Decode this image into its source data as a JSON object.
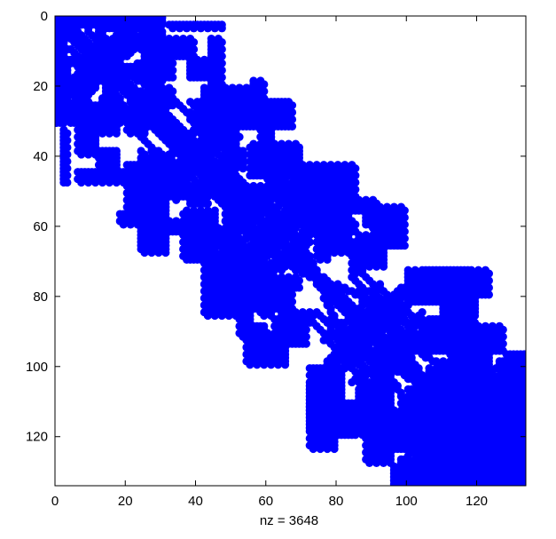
{
  "chart_data": {
    "type": "scatter",
    "title": "",
    "xlabel": "nz = 3648",
    "ylabel": "",
    "xlim": [
      0,
      134
    ],
    "ylim": [
      0,
      134
    ],
    "y_direction": "top-to-bottom",
    "grid": false,
    "marker_color": "#0000ff",
    "x_ticks": [
      "0",
      "20",
      "40",
      "60",
      "80",
      "100",
      "120"
    ],
    "y_ticks": [
      "0",
      "20",
      "40",
      "60",
      "80",
      "100",
      "120"
    ],
    "nonzero_count": 3648,
    "x_tick_values": [
      0,
      20,
      40,
      60,
      80,
      100,
      120
    ],
    "y_tick_values": [
      0,
      20,
      40,
      60,
      80,
      100,
      120
    ],
    "structure": {
      "description_blocks": [
        {
          "rows": [
            0,
            30
          ],
          "cols": [
            0,
            30
          ],
          "pattern": "dense-diamond"
        },
        {
          "rows": [
            24,
            52
          ],
          "cols": [
            24,
            52
          ],
          "pattern": "diamond"
        },
        {
          "rows": [
            46,
            74
          ],
          "cols": [
            46,
            74
          ],
          "pattern": "diamond"
        },
        {
          "rows": [
            72,
            102
          ],
          "cols": [
            72,
            102
          ],
          "pattern": "diamond"
        },
        {
          "rows": [
            96,
            134
          ],
          "cols": [
            96,
            134
          ],
          "pattern": "diamond"
        }
      ]
    },
    "dense_rects": [
      [
        0,
        30,
        0,
        3
      ],
      [
        0,
        3,
        0,
        30
      ],
      [
        0,
        30,
        27,
        30
      ],
      [
        27,
        30,
        0,
        30
      ],
      [
        0,
        18,
        25,
        31
      ],
      [
        0,
        4,
        25,
        31
      ],
      [
        4,
        12,
        28,
        31
      ],
      [
        12,
        18,
        25,
        31
      ],
      [
        12,
        20,
        0,
        4
      ],
      [
        18,
        25,
        0,
        4
      ],
      [
        25,
        30,
        0,
        20
      ],
      [
        25,
        34,
        6,
        18
      ],
      [
        34,
        40,
        6,
        12
      ],
      [
        25,
        30,
        25,
        32
      ],
      [
        28,
        34,
        20,
        26
      ],
      [
        0,
        4,
        27,
        31
      ],
      [
        4,
        14,
        26,
        31
      ],
      [
        14,
        17,
        24,
        30
      ],
      [
        17,
        24,
        28,
        31
      ],
      [
        0,
        3,
        28,
        29
      ],
      [
        2,
        4,
        32,
        48
      ],
      [
        44,
        48,
        6,
        24
      ],
      [
        38,
        48,
        12,
        18
      ],
      [
        40,
        48,
        24,
        30
      ],
      [
        40,
        44,
        30,
        32
      ],
      [
        24,
        28,
        52,
        66
      ],
      [
        24,
        32,
        40,
        46
      ],
      [
        30,
        38,
        48,
        52
      ],
      [
        38,
        44,
        48,
        54
      ],
      [
        24,
        28,
        40,
        50
      ],
      [
        28,
        32,
        42,
        46
      ],
      [
        42,
        56,
        20,
        26
      ],
      [
        48,
        60,
        24,
        32
      ],
      [
        56,
        68,
        24,
        32
      ],
      [
        56,
        60,
        18,
        30
      ],
      [
        60,
        68,
        24,
        30
      ],
      [
        24,
        30,
        50,
        66
      ],
      [
        30,
        42,
        58,
        62
      ],
      [
        38,
        44,
        62,
        70
      ],
      [
        42,
        50,
        60,
        66
      ],
      [
        44,
        52,
        68,
        72
      ],
      [
        48,
        56,
        66,
        74
      ],
      [
        55,
        70,
        36,
        46
      ],
      [
        60,
        66,
        36,
        40
      ],
      [
        62,
        70,
        40,
        46
      ],
      [
        68,
        72,
        42,
        46
      ],
      [
        52,
        60,
        48,
        52
      ],
      [
        56,
        58,
        72,
        76
      ],
      [
        52,
        58,
        70,
        84
      ],
      [
        58,
        62,
        72,
        78
      ],
      [
        60,
        70,
        74,
        78
      ],
      [
        60,
        68,
        78,
        84
      ],
      [
        58,
        64,
        78,
        84
      ],
      [
        64,
        68,
        84,
        92
      ],
      [
        60,
        66,
        90,
        94
      ],
      [
        56,
        62,
        92,
        96
      ],
      [
        64,
        72,
        88,
        94
      ],
      [
        66,
        74,
        84,
        88
      ],
      [
        70,
        86,
        42,
        52
      ],
      [
        68,
        80,
        46,
        52
      ],
      [
        76,
        84,
        52,
        58
      ],
      [
        80,
        86,
        58,
        62
      ],
      [
        84,
        92,
        52,
        56
      ],
      [
        88,
        96,
        54,
        60
      ],
      [
        86,
        90,
        62,
        68
      ],
      [
        90,
        98,
        62,
        66
      ],
      [
        92,
        100,
        54,
        66
      ],
      [
        72,
        78,
        104,
        118
      ],
      [
        74,
        80,
        110,
        118
      ],
      [
        76,
        90,
        110,
        114
      ],
      [
        80,
        86,
        114,
        120
      ],
      [
        86,
        92,
        106,
        112
      ],
      [
        88,
        96,
        108,
        120
      ],
      [
        90,
        100,
        112,
        118
      ],
      [
        96,
        104,
        116,
        124
      ],
      [
        100,
        104,
        120,
        124
      ],
      [
        100,
        124,
        72,
        80
      ],
      [
        100,
        110,
        74,
        82
      ],
      [
        108,
        118,
        76,
        82
      ],
      [
        106,
        122,
        76,
        80
      ],
      [
        110,
        116,
        82,
        86
      ],
      [
        104,
        108,
        86,
        92
      ],
      [
        108,
        120,
        88,
        92
      ],
      [
        114,
        120,
        84,
        92
      ],
      [
        104,
        128,
        88,
        96
      ],
      [
        96,
        118,
        92,
        96
      ],
      [
        106,
        124,
        100,
        108
      ],
      [
        108,
        118,
        104,
        110
      ],
      [
        118,
        124,
        106,
        112
      ],
      [
        120,
        128,
        108,
        114
      ],
      [
        116,
        126,
        110,
        116
      ],
      [
        124,
        134,
        112,
        120
      ],
      [
        118,
        130,
        118,
        124
      ],
      [
        124,
        134,
        124,
        130
      ],
      [
        126,
        134,
        128,
        134
      ],
      [
        112,
        134,
        130,
        134
      ],
      [
        104,
        112,
        128,
        134
      ],
      [
        96,
        104,
        128,
        134
      ],
      [
        98,
        104,
        126,
        132
      ]
    ],
    "diamond_lines": [
      [
        0,
        6,
        28,
        30
      ],
      [
        0,
        8,
        14,
        22
      ],
      [
        2,
        12,
        16,
        28
      ],
      [
        4,
        18,
        6,
        20
      ],
      [
        6,
        20,
        8,
        26
      ],
      [
        8,
        22,
        2,
        22
      ],
      [
        10,
        20,
        0,
        16
      ],
      [
        12,
        22,
        4,
        26
      ],
      [
        14,
        28,
        12,
        20
      ],
      [
        18,
        28,
        0,
        12
      ],
      [
        20,
        28,
        18,
        30
      ],
      [
        26,
        48,
        30,
        52
      ],
      [
        26,
        44,
        36,
        50
      ],
      [
        28,
        50,
        26,
        48
      ],
      [
        30,
        52,
        34,
        46
      ],
      [
        34,
        48,
        24,
        36
      ],
      [
        36,
        50,
        42,
        50
      ],
      [
        28,
        44,
        28,
        44
      ],
      [
        32,
        48,
        32,
        48
      ],
      [
        38,
        50,
        24,
        40
      ],
      [
        24,
        38,
        40,
        52
      ],
      [
        48,
        72,
        48,
        74
      ],
      [
        48,
        72,
        50,
        60
      ],
      [
        50,
        74,
        56,
        72
      ],
      [
        52,
        68,
        46,
        60
      ],
      [
        56,
        72,
        64,
        74
      ],
      [
        54,
        70,
        52,
        70
      ],
      [
        58,
        74,
        48,
        60
      ],
      [
        48,
        62,
        62,
        72
      ],
      [
        60,
        72,
        48,
        56
      ],
      [
        62,
        74,
        56,
        72
      ],
      [
        74,
        102,
        76,
        104
      ],
      [
        76,
        104,
        80,
        92
      ],
      [
        78,
        100,
        90,
        102
      ],
      [
        80,
        102,
        76,
        88
      ],
      [
        84,
        102,
        92,
        104
      ],
      [
        74,
        90,
        84,
        102
      ],
      [
        88,
        102,
        74,
        86
      ],
      [
        82,
        98,
        82,
        98
      ],
      [
        78,
        96,
        86,
        104
      ],
      [
        90,
        104,
        78,
        92
      ],
      [
        100,
        134,
        100,
        134
      ],
      [
        102,
        134,
        110,
        124
      ],
      [
        104,
        132,
        96,
        112
      ],
      [
        108,
        134,
        116,
        134
      ],
      [
        110,
        132,
        98,
        114
      ],
      [
        112,
        134,
        124,
        134
      ],
      [
        98,
        118,
        114,
        134
      ],
      [
        114,
        134,
        98,
        116
      ],
      [
        104,
        126,
        104,
        126
      ],
      [
        120,
        134,
        100,
        112
      ],
      [
        100,
        120,
        120,
        134
      ],
      [
        106,
        128,
        110,
        132
      ]
    ]
  }
}
